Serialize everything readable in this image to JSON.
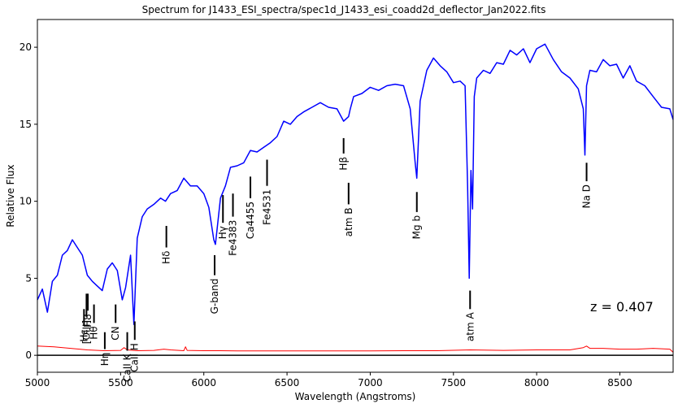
{
  "chart_data": {
    "type": "line",
    "title": "Spectrum for J1433_ESI_spectra/spec1d_J1433_esi_coadd2d_deflector_Jan2022.fits",
    "xlabel": "Wavelength (Angstroms)",
    "ylabel": "Relative Flux",
    "xlim": [
      5000,
      8820
    ],
    "ylim": [
      -1.1,
      21.8
    ],
    "grid": false,
    "legend": "none",
    "xticks": [
      5000,
      5500,
      6000,
      6500,
      7000,
      7500,
      8000,
      8500
    ],
    "yticks": [
      0,
      5,
      10,
      15,
      20
    ],
    "annotation": "z = 0.407",
    "colors": {
      "flux": "#0000ff",
      "error": "#ff0000",
      "zero_line": "#000000",
      "marker": "#000000"
    },
    "series": [
      {
        "role": "flux",
        "x": [
          5000,
          5030,
          5060,
          5090,
          5120,
          5150,
          5180,
          5210,
          5240,
          5270,
          5300,
          5330,
          5360,
          5390,
          5420,
          5450,
          5480,
          5510,
          5530,
          5560,
          5580,
          5600,
          5630,
          5660,
          5700,
          5740,
          5770,
          5800,
          5840,
          5880,
          5920,
          5960,
          6000,
          6030,
          6060,
          6070,
          6100,
          6130,
          6160,
          6200,
          6240,
          6280,
          6320,
          6360,
          6400,
          6440,
          6480,
          6520,
          6560,
          6600,
          6650,
          6700,
          6750,
          6800,
          6840,
          6870,
          6880,
          6900,
          6950,
          7000,
          7050,
          7100,
          7150,
          7200,
          7240,
          7270,
          7280,
          7300,
          7340,
          7380,
          7420,
          7460,
          7500,
          7540,
          7570,
          7585,
          7595,
          7605,
          7615,
          7625,
          7640,
          7680,
          7720,
          7760,
          7800,
          7840,
          7880,
          7920,
          7960,
          8000,
          8050,
          8100,
          8150,
          8200,
          8250,
          8280,
          8290,
          8300,
          8320,
          8360,
          8400,
          8440,
          8480,
          8520,
          8560,
          8600,
          8650,
          8700,
          8750,
          8800,
          8820
        ],
        "values": [
          3.6,
          4.3,
          2.8,
          4.8,
          5.2,
          6.5,
          6.8,
          7.5,
          7.0,
          6.5,
          5.2,
          4.8,
          4.5,
          4.2,
          5.6,
          6.0,
          5.5,
          3.6,
          4.4,
          6.5,
          2.0,
          7.6,
          9.0,
          9.5,
          9.8,
          10.2,
          10.0,
          10.5,
          10.7,
          11.5,
          11.0,
          11.0,
          10.5,
          9.6,
          7.5,
          7.2,
          10.2,
          11.0,
          12.2,
          12.3,
          12.5,
          13.3,
          13.2,
          13.5,
          13.8,
          14.2,
          15.2,
          15.0,
          15.5,
          15.8,
          16.1,
          16.4,
          16.1,
          16.0,
          15.2,
          15.5,
          16.0,
          16.8,
          17.0,
          17.4,
          17.2,
          17.5,
          17.6,
          17.5,
          16.0,
          12.5,
          11.5,
          16.5,
          18.5,
          19.3,
          18.8,
          18.4,
          17.7,
          17.8,
          17.5,
          11.0,
          5.0,
          12.0,
          9.5,
          16.8,
          18.0,
          18.5,
          18.3,
          19.0,
          18.9,
          19.8,
          19.5,
          19.9,
          19.0,
          19.9,
          20.2,
          19.2,
          18.4,
          18.0,
          17.3,
          16.0,
          13.0,
          17.5,
          18.5,
          18.4,
          19.2,
          18.8,
          18.9,
          18.0,
          18.8,
          17.8,
          17.5,
          16.8,
          16.1,
          16.0,
          15.3
        ]
      },
      {
        "role": "error",
        "x": [
          5000,
          5100,
          5200,
          5300,
          5400,
          5500,
          5520,
          5540,
          5600,
          5700,
          5760,
          5800,
          5880,
          5890,
          5900,
          6000,
          6100,
          6200,
          6400,
          6600,
          6800,
          7000,
          7200,
          7400,
          7600,
          7800,
          8000,
          8200,
          8280,
          8300,
          8320,
          8400,
          8500,
          8600,
          8700,
          8800,
          8820
        ],
        "values": [
          0.6,
          0.55,
          0.45,
          0.35,
          0.3,
          0.32,
          0.5,
          0.35,
          0.3,
          0.32,
          0.4,
          0.35,
          0.3,
          0.55,
          0.32,
          0.3,
          0.3,
          0.28,
          0.28,
          0.28,
          0.28,
          0.28,
          0.3,
          0.3,
          0.35,
          0.32,
          0.35,
          0.35,
          0.5,
          0.6,
          0.45,
          0.45,
          0.4,
          0.4,
          0.45,
          0.4,
          0.2
        ]
      }
    ],
    "line_markers": [
      {
        "label": "Hε",
        "x": 5280,
        "y_top": 3.0,
        "y_bottom": 1.9
      },
      {
        "label": "[OIII]",
        "x": 5295,
        "y_top": 4.0,
        "y_bottom": 2.5
      },
      {
        "label": "H8",
        "x": 5303,
        "y_top": 4.0,
        "y_bottom": 2.9
      },
      {
        "label": "Hθ",
        "x": 5340,
        "y_top": 3.3,
        "y_bottom": 2.1
      },
      {
        "label": "Hη",
        "x": 5405,
        "y_top": 1.5,
        "y_bottom": 0.4
      },
      {
        "label": "CN",
        "x": 5470,
        "y_top": 3.3,
        "y_bottom": 2.1
      },
      {
        "label": "CaII K",
        "x": 5540,
        "y_top": 1.5,
        "y_bottom": 0.3
      },
      {
        "label": "CaII H",
        "x": 5585,
        "y_top": 2.2,
        "y_bottom": 1.0
      },
      {
        "label": "Hδ",
        "x": 5775,
        "y_top": 8.4,
        "y_bottom": 7.0
      },
      {
        "label": "G-band",
        "x": 6065,
        "y_top": 6.5,
        "y_bottom": 5.2
      },
      {
        "label": "Hγ",
        "x": 6115,
        "y_top": 10.4,
        "y_bottom": 8.6
      },
      {
        "label": "Fe4383",
        "x": 6175,
        "y_top": 10.5,
        "y_bottom": 9.0
      },
      {
        "label": "Ca4455",
        "x": 6280,
        "y_top": 11.6,
        "y_bottom": 10.2
      },
      {
        "label": "Fe4531",
        "x": 6380,
        "y_top": 12.7,
        "y_bottom": 11.0
      },
      {
        "label": "Hβ",
        "x": 6840,
        "y_top": 14.1,
        "y_bottom": 13.1
      },
      {
        "label": "atm B",
        "x": 6870,
        "y_top": 11.2,
        "y_bottom": 9.8
      },
      {
        "label": "Mg b",
        "x": 7280,
        "y_top": 10.6,
        "y_bottom": 9.3
      },
      {
        "label": "atm A",
        "x": 7600,
        "y_top": 4.2,
        "y_bottom": 3.0
      },
      {
        "label": "Na D",
        "x": 8300,
        "y_top": 12.5,
        "y_bottom": 11.3
      }
    ]
  }
}
